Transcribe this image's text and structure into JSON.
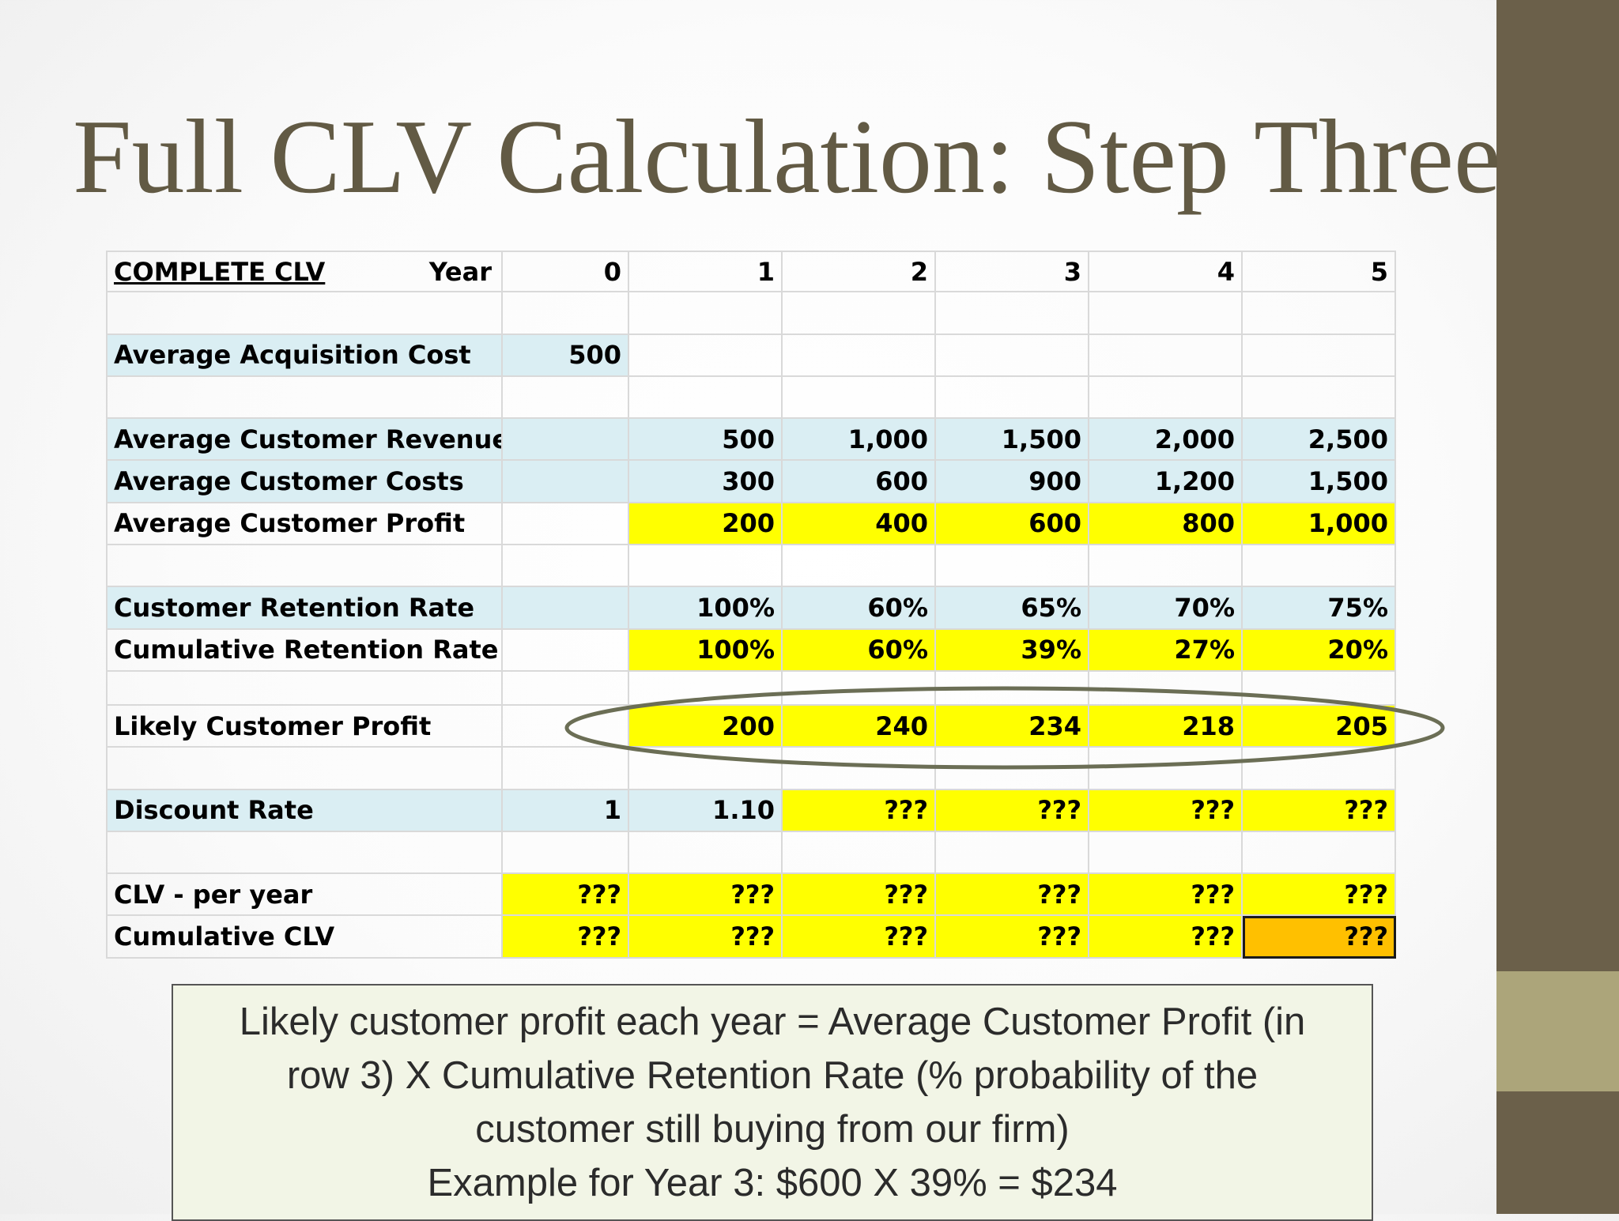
{
  "title": "Full CLV Calculation: Step Three",
  "table": {
    "header": {
      "label": "COMPLETE CLV",
      "year_label": "Year",
      "years": [
        "0",
        "1",
        "2",
        "3",
        "4",
        "5"
      ]
    },
    "acquisition": {
      "label": "Average Acquisition Cost",
      "values": [
        "500",
        "",
        "",
        "",
        "",
        ""
      ]
    },
    "revenue": {
      "label": "Average Customer Revenue",
      "values": [
        "",
        "500",
        "1,000",
        "1,500",
        "2,000",
        "2,500"
      ]
    },
    "costs": {
      "label": "Average Customer Costs",
      "values": [
        "",
        "300",
        "600",
        "900",
        "1,200",
        "1,500"
      ]
    },
    "profit": {
      "label": "Average Customer Profit",
      "values": [
        "",
        "200",
        "400",
        "600",
        "800",
        "1,000"
      ]
    },
    "retention": {
      "label": "Customer Retention Rate",
      "values": [
        "",
        "100%",
        "60%",
        "65%",
        "70%",
        "75%"
      ]
    },
    "cumulative_retention": {
      "label": "Cumulative Retention Rate",
      "values": [
        "",
        "100%",
        "60%",
        "39%",
        "27%",
        "20%"
      ]
    },
    "likely_profit": {
      "label": "Likely Customer Profit",
      "values": [
        "",
        "200",
        "240",
        "234",
        "218",
        "205"
      ]
    },
    "discount": {
      "label": "Discount Rate",
      "values": [
        "1",
        "1.10",
        "???",
        "???",
        "???",
        "???"
      ]
    },
    "clv_per_year": {
      "label": "CLV - per year",
      "values": [
        "???",
        "???",
        "???",
        "???",
        "???",
        "???"
      ]
    },
    "cumulative_clv": {
      "label": "Cumulative CLV",
      "values": [
        "???",
        "???",
        "???",
        "???",
        "???",
        "???"
      ]
    }
  },
  "colors": {
    "label_fill": "#daeef3",
    "highlight": "#ffff00",
    "result": "#ffc000",
    "sidebar": "#6b604a",
    "sidebar_accent": "#aca57a",
    "ellipse": "#6b6e55"
  },
  "note": {
    "lines": [
      "Likely customer profit each year = Average Customer Profit (in",
      "row 3) X Cumulative Retention Rate (% probability of the",
      "customer still buying from our firm)",
      "Example for Year 3: $600 X 39% = $234"
    ]
  }
}
